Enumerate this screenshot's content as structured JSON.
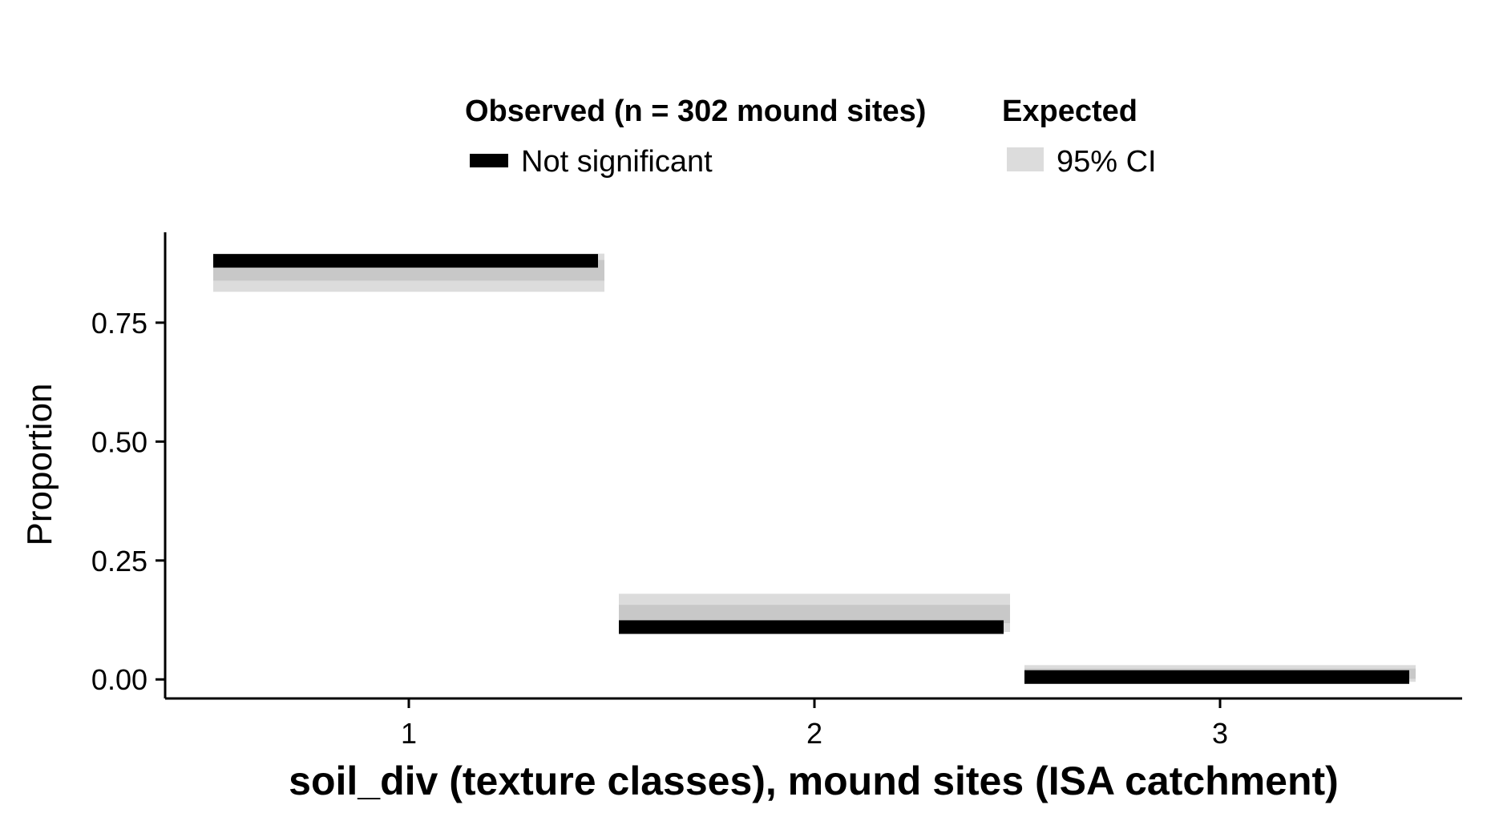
{
  "legend": {
    "observed_title": "Observed (n = 302 mound sites)",
    "observed_label": "Not significant",
    "expected_title": "Expected",
    "expected_label": "95% CI"
  },
  "colors": {
    "observed": "#000000",
    "ci_outer": "#dcdcdc",
    "ci_inner": "#c8c8c8",
    "axis": "#000000"
  },
  "chart_data": {
    "type": "bar",
    "xlabel": "soil_div (texture classes), mound sites (ISA catchment)",
    "ylabel": "Proportion",
    "categories": [
      "1",
      "2",
      "3"
    ],
    "ylim": [
      -0.04,
      0.94
    ],
    "yticks": [
      "0.00",
      "0.25",
      "0.50",
      "0.75"
    ],
    "series": [
      {
        "name": "Not significant",
        "kind": "observed",
        "values": [
          0.88,
          0.11,
          0.005
        ]
      },
      {
        "name": "95% CI",
        "kind": "expected",
        "lower": [
          0.825,
          0.11,
          0.005
        ],
        "upper": [
          0.885,
          0.17,
          0.02
        ],
        "inner_lower": [
          0.845,
          0.125,
          0.008
        ],
        "inner_upper": [
          0.875,
          0.15,
          0.016
        ]
      }
    ],
    "grid": false,
    "legend_position": "top"
  }
}
